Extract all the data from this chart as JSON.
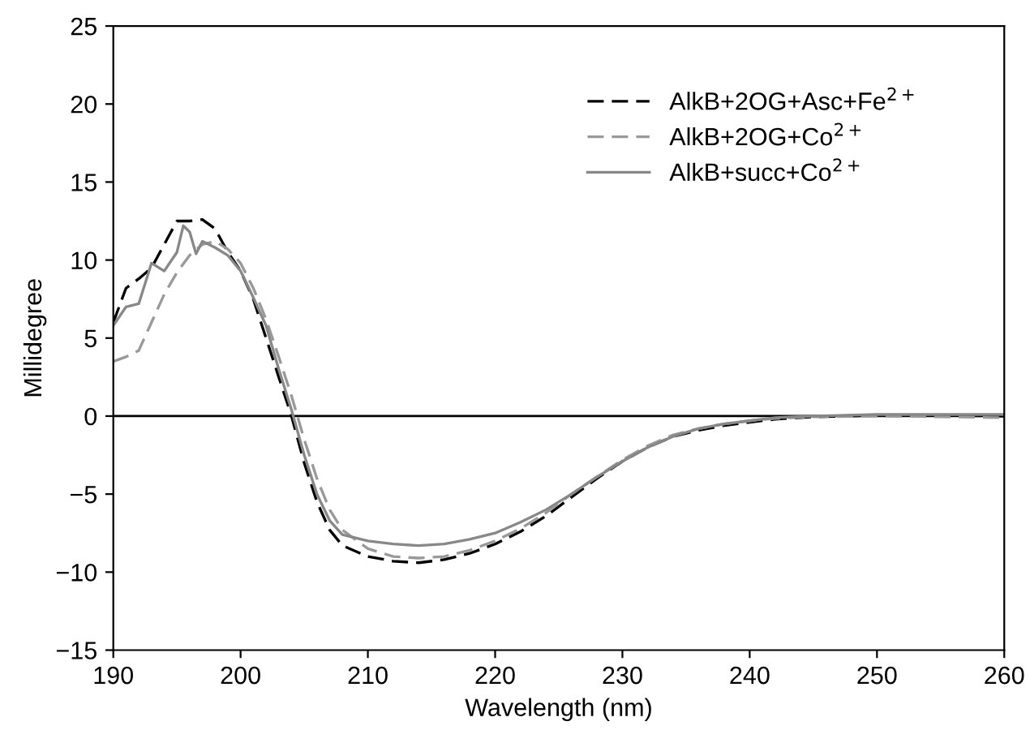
{
  "chart_data": {
    "type": "line",
    "xlabel": "Wavelength (nm)",
    "ylabel": "Millidegree",
    "xlim": [
      190,
      260
    ],
    "xticks": [
      190,
      200,
      210,
      220,
      230,
      240,
      250,
      260
    ],
    "ylim": [
      -15,
      25
    ],
    "yticks": [
      {
        "value": -15,
        "label": "−15"
      },
      {
        "value": -10,
        "label": "−10"
      },
      {
        "value": -5,
        "label": "−5"
      },
      0,
      5,
      10,
      15,
      20,
      25
    ],
    "grid": false,
    "legend": "top right",
    "marker": "none",
    "ref_lines": [
      {
        "axis": "y",
        "value": 0,
        "color": "#000000",
        "line_style": "solid"
      }
    ],
    "series": [
      {
        "name": "AlkB+2OG+Asc+Fe$^{2+}$",
        "color": "#000000",
        "line_style": "dashed",
        "x": [
          190,
          191,
          192,
          193,
          194,
          195,
          196,
          197,
          198,
          199,
          200,
          201,
          202,
          203,
          204,
          205,
          206,
          207,
          208,
          210,
          212,
          214,
          216,
          218,
          220,
          222,
          224,
          226,
          228,
          230,
          232,
          234,
          236,
          238,
          240,
          242,
          245,
          250,
          255,
          260
        ],
        "values": [
          6,
          8.2,
          8.8,
          9.5,
          11,
          12.5,
          12.5,
          12.6,
          12,
          10.5,
          9.3,
          7.5,
          5,
          2.5,
          0,
          -3,
          -5.5,
          -7.3,
          -8.3,
          -9.0,
          -9.3,
          -9.4,
          -9.2,
          -8.8,
          -8.2,
          -7.4,
          -6.4,
          -5.2,
          -4.0,
          -2.9,
          -2.0,
          -1.3,
          -0.9,
          -0.6,
          -0.4,
          -0.2,
          -0.05,
          0.05,
          0.05,
          0
        ]
      },
      {
        "name": "AlkB+2OG+Co$^{2+}$",
        "color": "#999999",
        "line_style": "dashed",
        "x": [
          190,
          191,
          192,
          193,
          194,
          195,
          196,
          197,
          198,
          199,
          200,
          201,
          202,
          203,
          204,
          205,
          206,
          207,
          208,
          210,
          212,
          214,
          216,
          218,
          220,
          222,
          224,
          226,
          228,
          230,
          232,
          234,
          236,
          238,
          240,
          242,
          245,
          250,
          255,
          260
        ],
        "values": [
          3.5,
          3.8,
          4.2,
          6,
          7.8,
          9.2,
          10.3,
          11,
          11.2,
          10.7,
          9.8,
          8.2,
          6.2,
          3.8,
          1.3,
          -1.5,
          -4,
          -6,
          -7.3,
          -8.5,
          -9.0,
          -9.1,
          -9.0,
          -8.6,
          -8.0,
          -7.2,
          -6.2,
          -5.0,
          -3.9,
          -2.8,
          -1.9,
          -1.2,
          -0.8,
          -0.5,
          -0.3,
          -0.15,
          -0.05,
          0,
          -0.05,
          -0.1
        ]
      },
      {
        "name": "AlkB+succ+Co$^{2+}$",
        "color": "#888888",
        "line_style": "solid",
        "x": [
          190,
          191,
          192,
          193,
          194,
          195,
          195.5,
          196,
          196.5,
          197,
          198,
          199,
          200,
          201,
          202,
          203,
          204,
          205,
          206,
          207,
          208,
          210,
          212,
          214,
          216,
          218,
          220,
          222,
          224,
          226,
          228,
          230,
          232,
          234,
          236,
          238,
          240,
          242,
          245,
          250,
          255,
          260
        ],
        "values": [
          5.8,
          7,
          7.2,
          9.8,
          9.3,
          10.5,
          12.2,
          11.8,
          10.4,
          11.2,
          10.8,
          10.3,
          9.3,
          7.6,
          5.8,
          3,
          0.4,
          -2.5,
          -5,
          -6.7,
          -7.6,
          -8.0,
          -8.2,
          -8.3,
          -8.2,
          -7.9,
          -7.5,
          -6.8,
          -6,
          -5,
          -3.9,
          -2.9,
          -2,
          -1.3,
          -0.8,
          -0.5,
          -0.3,
          -0.1,
          0,
          0.1,
          0.1,
          0.1
        ]
      }
    ]
  }
}
